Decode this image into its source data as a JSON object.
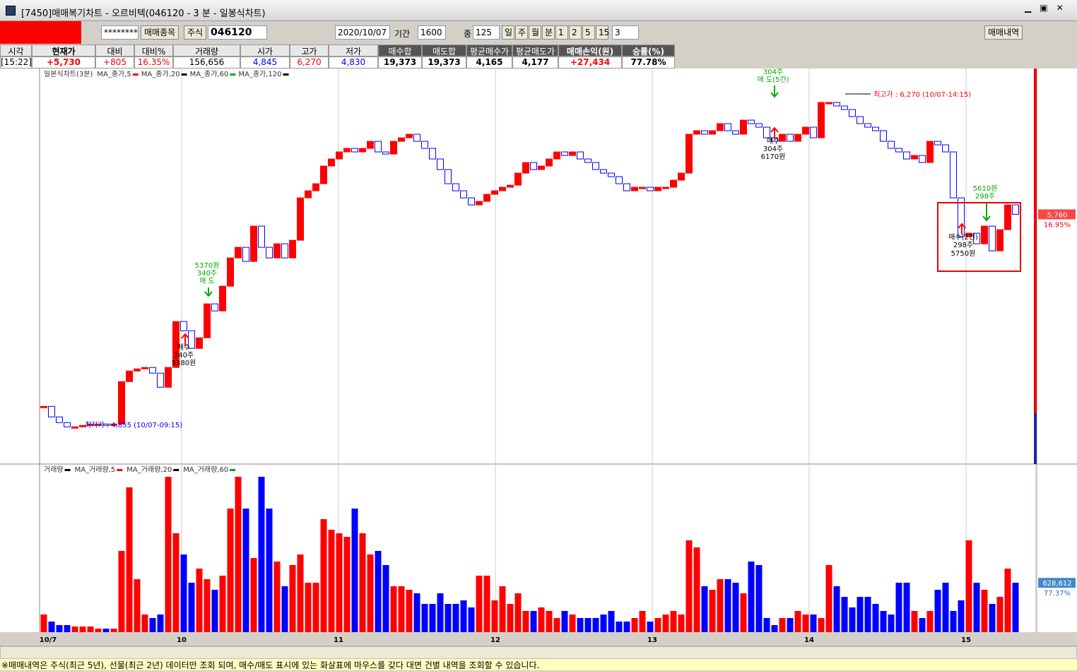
{
  "window": {
    "title": "[7450]매매복기차트 - 오르비텍(046120 - 3 분 - 일봉식차트)"
  },
  "toolbar": {
    "password": "********",
    "stock_button": "매매종목",
    "market": "주식",
    "code": "046120",
    "date": "2020/10/07",
    "period_label": "기간",
    "period": "1600",
    "count_label": "종",
    "count": "125",
    "units": [
      "일",
      "주",
      "월",
      "분",
      "1",
      "2",
      "5",
      "15"
    ],
    "minute": "3",
    "history_button": "매매내역"
  },
  "stats": {
    "headers": [
      "시각",
      "현재가",
      "대비",
      "대비%",
      "거래량",
      "시가",
      "고가",
      "저가",
      "매수합",
      "매도합",
      "평균매수가",
      "평균매도가",
      "매매손익(원)",
      "승률(%)"
    ],
    "values": [
      "[15:22]",
      "+5,730",
      "+805",
      "16.35%",
      "156,656",
      "4,845",
      "6,270",
      "4,830",
      "19,373",
      "19,373",
      "4,165",
      "4,177",
      "+27,434",
      "77.78%"
    ]
  },
  "chart_data": {
    "type": "candlestick",
    "legend": [
      "일본식차트(3분)",
      "MA_종가,5",
      "MA_종가,20",
      "MA_종가,60",
      "MA_종가,120"
    ],
    "volume_legend": [
      "거래량",
      "MA_거래량,5",
      "MA_거래량,20",
      "MA_거래량,60"
    ],
    "day_labels": [
      "10/7",
      "10",
      "11",
      "12",
      "13",
      "14",
      "15"
    ],
    "ylim": [
      4700,
      6376
    ],
    "volume_ylim": [
      0,
      2070000
    ],
    "up_color": "#ff0000",
    "down_color": "#0000ff",
    "closes": [
      4945,
      4900,
      4876,
      4858,
      4858,
      4864,
      4870,
      4870,
      4864,
      4870,
      5050,
      5095,
      5104,
      5110,
      5086,
      5026,
      5110,
      5305,
      5266,
      5191,
      5236,
      5380,
      5350,
      5455,
      5575,
      5620,
      5560,
      5710,
      5620,
      5575,
      5635,
      5575,
      5650,
      5830,
      5860,
      5890,
      5965,
      5995,
      6025,
      6040,
      6025,
      6040,
      6070,
      6025,
      6016,
      6070,
      6085,
      6100,
      6070,
      6040,
      5995,
      5950,
      5890,
      5860,
      5830,
      5800,
      5815,
      5845,
      5860,
      5875,
      5884,
      5935,
      5980,
      5950,
      5965,
      5995,
      6025,
      6010,
      6025,
      5995,
      5980,
      5950,
      5935,
      5920,
      5890,
      5860,
      5875,
      5875,
      5860,
      5875,
      5875,
      5905,
      5935,
      6100,
      6115,
      6100,
      6115,
      6145,
      6115,
      6100,
      6160,
      6145,
      6130,
      6085,
      6070,
      6100,
      6070,
      6100,
      6130,
      6085,
      6235,
      6235,
      6220,
      6205,
      6175,
      6145,
      6130,
      6115,
      6070,
      6040,
      6025,
      5995,
      6010,
      5980,
      6070,
      6055,
      6025,
      5830,
      5665,
      5680,
      5635,
      5710,
      5605,
      5695,
      5800,
      5760
    ],
    "volumes": [
      225000,
      135000,
      90000,
      90000,
      72000,
      72000,
      72000,
      45000,
      45000,
      45000,
      1035000,
      1845000,
      675000,
      225000,
      180000,
      225000,
      1980000,
      1260000,
      990000,
      630000,
      810000,
      675000,
      540000,
      720000,
      1575000,
      1980000,
      1575000,
      945000,
      1980000,
      1575000,
      900000,
      585000,
      855000,
      990000,
      630000,
      630000,
      1440000,
      1305000,
      1260000,
      1215000,
      1575000,
      1260000,
      990000,
      1035000,
      855000,
      585000,
      585000,
      540000,
      495000,
      360000,
      360000,
      495000,
      360000,
      360000,
      405000,
      315000,
      720000,
      720000,
      405000,
      585000,
      360000,
      495000,
      270000,
      270000,
      315000,
      270000,
      180000,
      270000,
      225000,
      180000,
      180000,
      180000,
      225000,
      270000,
      135000,
      135000,
      180000,
      270000,
      135000,
      180000,
      225000,
      270000,
      225000,
      1170000,
      1080000,
      585000,
      540000,
      675000,
      675000,
      630000,
      495000,
      900000,
      855000,
      180000,
      90000,
      180000,
      180000,
      270000,
      225000,
      225000,
      180000,
      855000,
      585000,
      450000,
      315000,
      450000,
      450000,
      360000,
      270000,
      225000,
      630000,
      630000,
      270000,
      180000,
      270000,
      540000,
      630000,
      270000,
      405000,
      1170000,
      630000,
      540000,
      360000,
      450000,
      810000,
      630000
    ],
    "annotations": [
      "5370원",
      "340주",
      "매 도",
      "매수",
      "340주",
      "5380원",
      "304주",
      "매 도(5건)",
      "매수",
      "304주",
      "6170원",
      "5610원",
      "298주",
      "매수(2건)",
      "298주",
      "5750원",
      "최고가 : 6,270 (10/07-14:15)",
      "최저가 : 4,855 (10/07-09:15)"
    ],
    "price_label": {
      "value": 5760,
      "label": "5,760"
    },
    "price_change": "16.95%",
    "volume_label": {
      "value": 628612,
      "label": "628,612"
    },
    "volume_ratio": "77.37%"
  },
  "footer": "※매매내역은 주식(최근 5년), 선물(최근 2년) 데이터만 조회 되며, 매수/매도 표시에 있는 화살표에 마우스를 갖다 대면 건별 내역을 조회할 수 있습니다."
}
